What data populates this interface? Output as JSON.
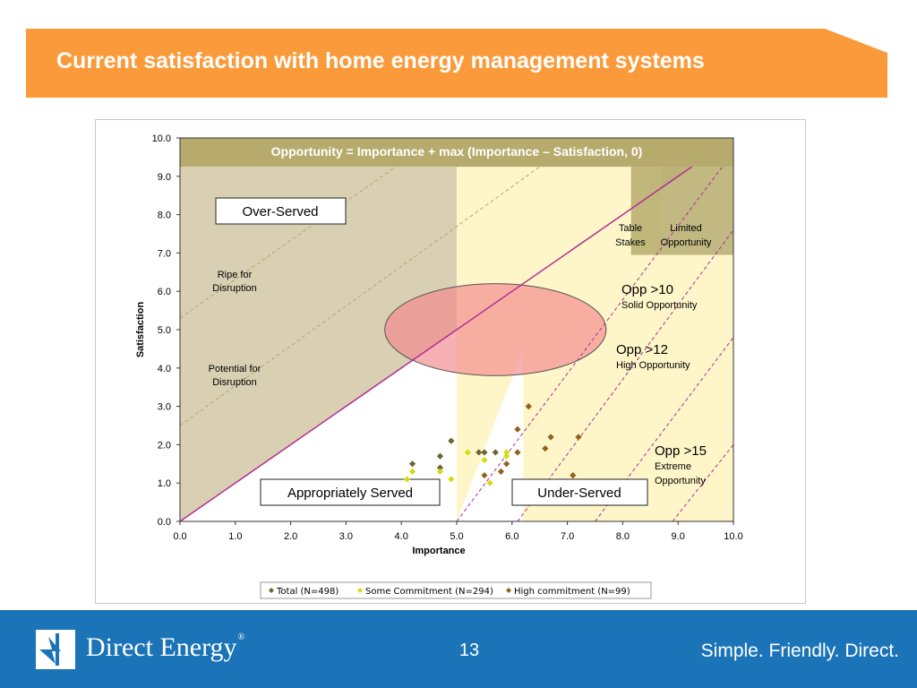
{
  "slide": {
    "title": "Current satisfaction with home energy management systems",
    "page_number": "13"
  },
  "footer": {
    "logo_text": "Direct Energy",
    "logo_trademark": "®",
    "tagline": "Simple.  Friendly.  Direct."
  },
  "colors": {
    "title_bar": "#fb9a3a",
    "footer": "#1b74b8",
    "formula_band": "#b6ab6c",
    "overserved_zone": "#d9d0b3",
    "underserved_zone": "#fef6c8",
    "ellipse_fill": "#f2868a",
    "diagonal_line": "#b02e93",
    "total": "#6b6331",
    "some_commitment": "#d6da12",
    "high_commitment": "#94601c"
  },
  "chart_data": {
    "type": "scatter",
    "xlabel": "Importance",
    "ylabel": "Satisfaction",
    "xlim": [
      0,
      10
    ],
    "ylim": [
      0,
      10
    ],
    "x_ticks": [
      "0.0",
      "1.0",
      "2.0",
      "3.0",
      "4.0",
      "5.0",
      "6.0",
      "7.0",
      "8.0",
      "9.0",
      "10.0"
    ],
    "y_ticks": [
      "0.0",
      "1.0",
      "2.0",
      "3.0",
      "4.0",
      "5.0",
      "6.0",
      "7.0",
      "8.0",
      "9.0",
      "10.0"
    ],
    "grid": false,
    "legend_position": "bottom",
    "formula": "Opportunity = Importance + max (Importance – Satisfaction, 0)",
    "region_labels": {
      "over_served": "Over-Served",
      "appropriately_served": "Appropriately Served",
      "under_served": "Under-Served",
      "ripe_line1": "Ripe for",
      "ripe_line2": "Disruption",
      "potential_line1": "Potential for",
      "potential_line2": "Disruption",
      "table_stakes_line1": "Table",
      "table_stakes_line2": "Stakes",
      "limited_line1": "Limited",
      "limited_line2": "Opportunity",
      "opp10_title": "Opp >10",
      "opp10_sub": "Solid Opportunity",
      "opp12_title": "Opp >12",
      "opp12_sub": "High Opportunity",
      "opp15_title": "Opp >15",
      "opp15_sub1": "Extreme",
      "opp15_sub2": "Opportunity"
    },
    "series": [
      {
        "name": "Total (N=498)",
        "color": "#6b6331",
        "points": [
          [
            4.2,
            1.5
          ],
          [
            4.7,
            1.7
          ],
          [
            4.7,
            1.4
          ],
          [
            4.9,
            2.1
          ],
          [
            5.4,
            1.8
          ],
          [
            5.5,
            1.8
          ],
          [
            5.7,
            1.8
          ]
        ]
      },
      {
        "name": "Some Commitment (N=294)",
        "color": "#d6da12",
        "points": [
          [
            4.1,
            1.1
          ],
          [
            4.2,
            1.3
          ],
          [
            4.7,
            1.3
          ],
          [
            4.9,
            1.1
          ],
          [
            5.2,
            1.8
          ],
          [
            5.5,
            1.6
          ],
          [
            5.6,
            1.0
          ],
          [
            5.9,
            1.7
          ],
          [
            5.9,
            1.8
          ]
        ]
      },
      {
        "name": "High commitment (N=99)",
        "color": "#94601c",
        "points": [
          [
            5.5,
            1.2
          ],
          [
            5.8,
            1.3
          ],
          [
            5.9,
            1.5
          ],
          [
            6.1,
            1.8
          ],
          [
            6.1,
            2.4
          ],
          [
            6.3,
            3.0
          ],
          [
            6.6,
            1.9
          ],
          [
            6.7,
            2.2
          ],
          [
            7.1,
            1.2
          ],
          [
            7.2,
            2.2
          ]
        ]
      }
    ],
    "ellipse": {
      "cx": 5.7,
      "cy": 5.0,
      "rx": 2.0,
      "ry": 1.2
    }
  }
}
